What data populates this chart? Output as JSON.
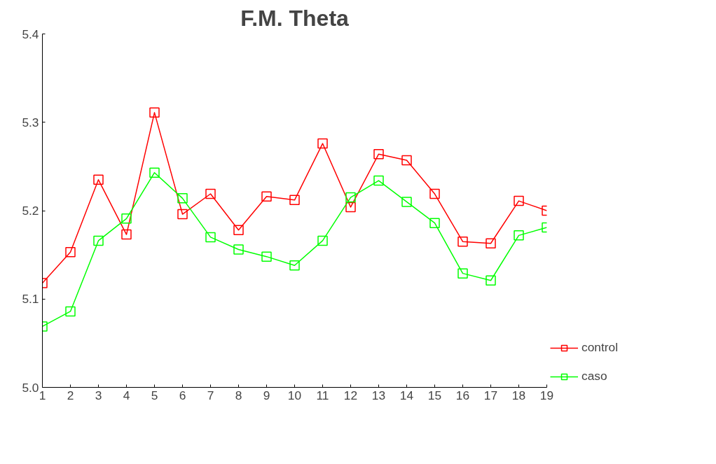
{
  "chart_data": {
    "type": "line",
    "title": "F.M. Theta",
    "x": [
      1,
      2,
      3,
      4,
      5,
      6,
      7,
      8,
      9,
      10,
      11,
      12,
      13,
      14,
      15,
      16,
      17,
      18,
      19
    ],
    "series": [
      {
        "name": "control",
        "color": "#ff0000",
        "values": [
          5.118,
          5.153,
          5.235,
          5.173,
          5.311,
          5.196,
          5.219,
          5.178,
          5.216,
          5.212,
          5.276,
          5.204,
          5.264,
          5.257,
          5.219,
          5.165,
          5.163,
          5.211,
          5.2
        ]
      },
      {
        "name": "caso",
        "color": "#00ff00",
        "values": [
          5.069,
          5.086,
          5.166,
          5.191,
          5.243,
          5.214,
          5.17,
          5.156,
          5.148,
          5.138,
          5.166,
          5.215,
          5.234,
          5.21,
          5.186,
          5.129,
          5.121,
          5.172,
          5.181
        ]
      }
    ],
    "xlim": [
      1,
      19
    ],
    "ylim": [
      5.0,
      5.4
    ],
    "xticks": [
      1,
      2,
      3,
      4,
      5,
      6,
      7,
      8,
      9,
      10,
      11,
      12,
      13,
      14,
      15,
      16,
      17,
      18,
      19
    ],
    "yticks": [
      {
        "value": 5.0,
        "label": "5.0"
      },
      {
        "value": 5.1,
        "label": "5.1"
      },
      {
        "value": 5.2,
        "label": "5.2"
      },
      {
        "value": 5.3,
        "label": "5.3"
      },
      {
        "value": 5.4,
        "label": "5.4"
      }
    ],
    "grid": false,
    "legend": "right",
    "marker": "square",
    "line_style": "solid"
  }
}
